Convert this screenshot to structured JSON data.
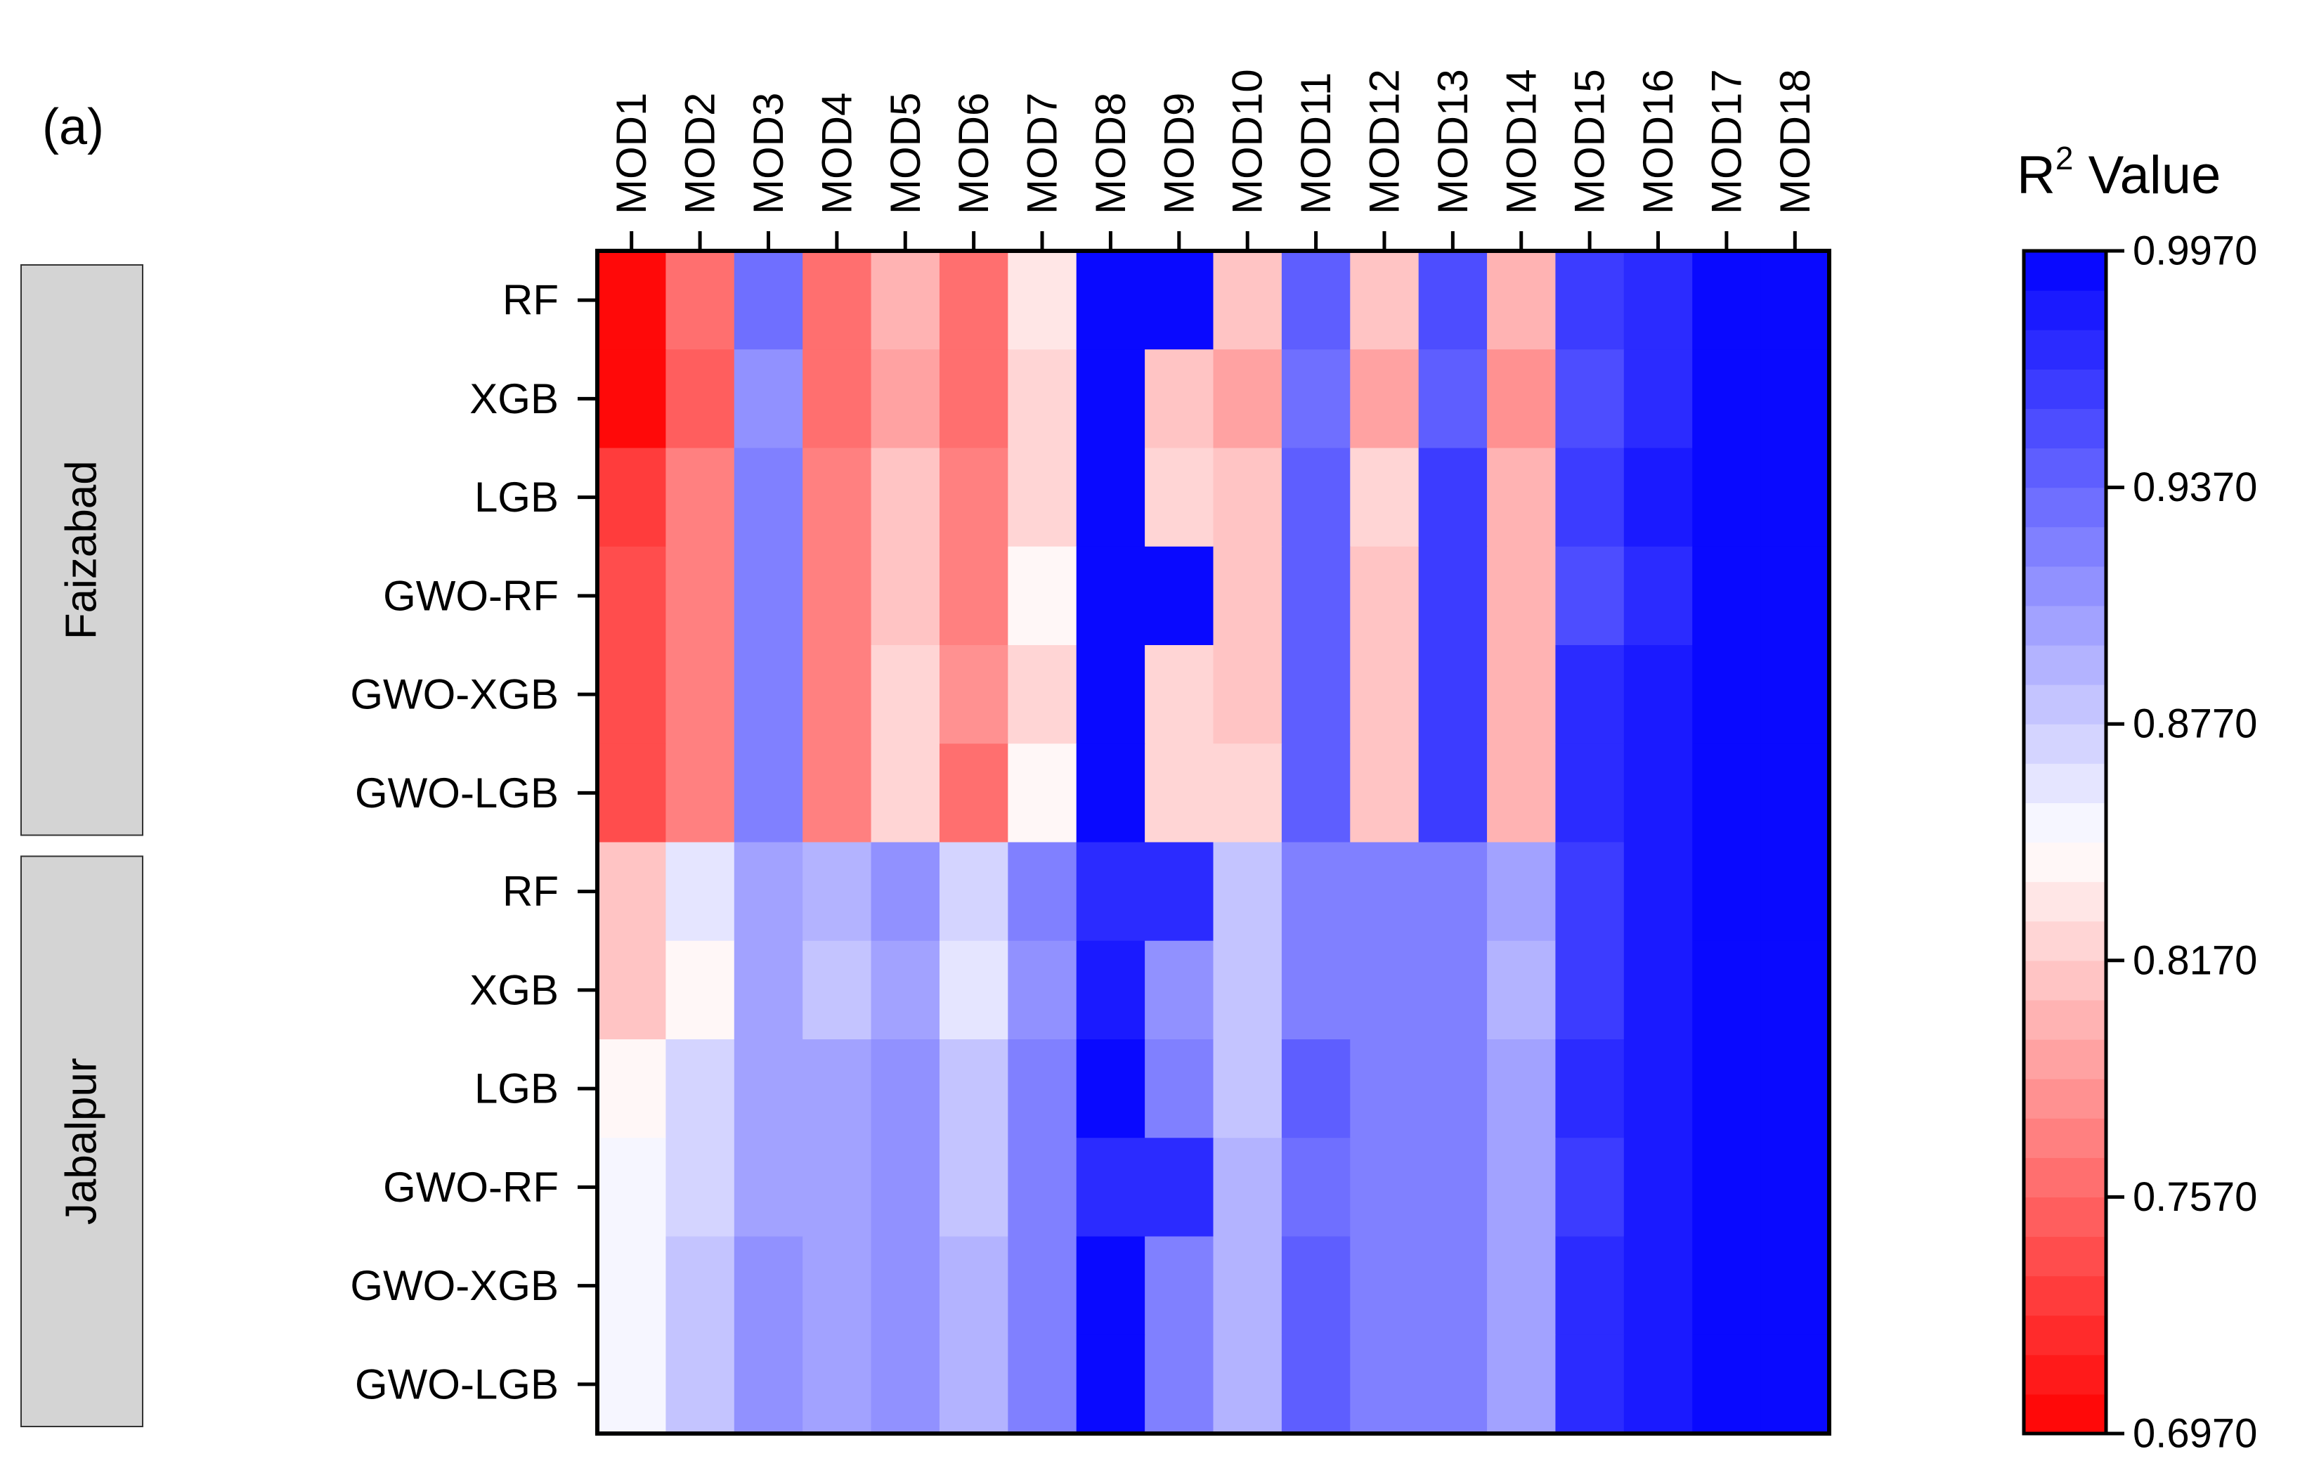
{
  "panel_label": "(a)",
  "legend": {
    "title_main": "R",
    "title_sup": "2",
    "title_rest": " Value",
    "ticks": [
      "0.9970",
      "0.9370",
      "0.8770",
      "0.8170",
      "0.7570",
      "0.6970"
    ]
  },
  "chart_data": {
    "type": "heatmap",
    "columns": [
      "MOD1",
      "MOD2",
      "MOD3",
      "MOD4",
      "MOD5",
      "MOD6",
      "MOD7",
      "MOD8",
      "MOD9",
      "MOD10",
      "MOD11",
      "MOD12",
      "MOD13",
      "MOD14",
      "MOD15",
      "MOD16",
      "MOD17",
      "MOD18"
    ],
    "groups": [
      {
        "name": "Faizabad",
        "rows": [
          "RF",
          "XGB",
          "LGB",
          "GWO-RF",
          "GWO-XGB",
          "GWO-LGB"
        ]
      },
      {
        "name": "Jabalpur",
        "rows": [
          "RF",
          "XGB",
          "LGB",
          "GWO-RF",
          "GWO-XGB",
          "GWO-LGB"
        ]
      }
    ],
    "value_range": [
      0.697,
      0.997
    ],
    "color_scale": {
      "low": "#ff0000",
      "mid": "#ffffff",
      "high": "#0000ff",
      "bins": 30
    },
    "values": [
      [
        0.699,
        0.758,
        0.932,
        0.764,
        0.802,
        0.758,
        0.832,
        0.992,
        0.992,
        0.808,
        0.937,
        0.808,
        0.949,
        0.8,
        0.96,
        0.975,
        0.997,
        0.997
      ],
      [
        0.704,
        0.751,
        0.91,
        0.764,
        0.796,
        0.758,
        0.82,
        0.992,
        0.814,
        0.796,
        0.932,
        0.791,
        0.943,
        0.784,
        0.954,
        0.975,
        0.997,
        0.997
      ],
      [
        0.733,
        0.77,
        0.926,
        0.776,
        0.808,
        0.77,
        0.826,
        0.992,
        0.82,
        0.808,
        0.943,
        0.82,
        0.96,
        0.802,
        0.966,
        0.98,
        0.997,
        0.997
      ],
      [
        0.739,
        0.776,
        0.926,
        0.776,
        0.808,
        0.77,
        0.846,
        0.992,
        0.992,
        0.808,
        0.943,
        0.814,
        0.96,
        0.802,
        0.954,
        0.975,
        0.997,
        0.997
      ],
      [
        0.739,
        0.776,
        0.926,
        0.776,
        0.82,
        0.784,
        0.826,
        0.992,
        0.82,
        0.808,
        0.943,
        0.814,
        0.96,
        0.802,
        0.975,
        0.985,
        0.997,
        0.997
      ],
      [
        0.739,
        0.776,
        0.926,
        0.776,
        0.82,
        0.764,
        0.838,
        0.992,
        0.82,
        0.82,
        0.943,
        0.814,
        0.96,
        0.802,
        0.975,
        0.985,
        0.997,
        0.997
      ],
      [
        0.808,
        0.86,
        0.897,
        0.89,
        0.914,
        0.875,
        0.926,
        0.975,
        0.975,
        0.885,
        0.926,
        0.926,
        0.926,
        0.9,
        0.966,
        0.985,
        0.997,
        0.997
      ],
      [
        0.814,
        0.84,
        0.905,
        0.885,
        0.9,
        0.86,
        0.914,
        0.98,
        0.914,
        0.88,
        0.926,
        0.92,
        0.926,
        0.89,
        0.966,
        0.985,
        0.997,
        0.997
      ],
      [
        0.838,
        0.875,
        0.9,
        0.897,
        0.914,
        0.88,
        0.926,
        0.997,
        0.926,
        0.885,
        0.943,
        0.926,
        0.926,
        0.9,
        0.975,
        0.985,
        0.997,
        0.997
      ],
      [
        0.856,
        0.875,
        0.9,
        0.897,
        0.914,
        0.885,
        0.926,
        0.975,
        0.975,
        0.89,
        0.932,
        0.926,
        0.926,
        0.9,
        0.966,
        0.985,
        0.997,
        0.997
      ],
      [
        0.856,
        0.885,
        0.91,
        0.905,
        0.914,
        0.89,
        0.926,
        0.997,
        0.926,
        0.89,
        0.943,
        0.926,
        0.926,
        0.9,
        0.975,
        0.985,
        0.997,
        0.997
      ],
      [
        0.856,
        0.885,
        0.91,
        0.905,
        0.914,
        0.89,
        0.926,
        0.997,
        0.926,
        0.89,
        0.943,
        0.926,
        0.926,
        0.9,
        0.975,
        0.985,
        0.997,
        0.997
      ]
    ]
  }
}
